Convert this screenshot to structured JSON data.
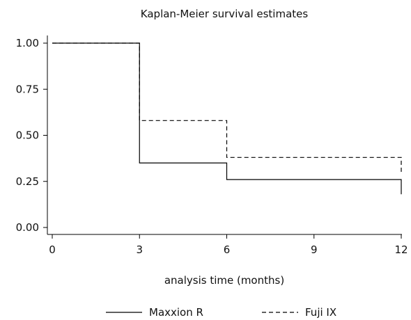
{
  "chart_data": {
    "type": "line",
    "subtype": "step",
    "title": "Kaplan-Meier survival estimates",
    "xlabel": "analysis time (months)",
    "ylabel": "",
    "xlim": [
      0,
      12
    ],
    "ylim": [
      0,
      1
    ],
    "x_ticks": [
      "0",
      "3",
      "6",
      "9",
      "12"
    ],
    "y_ticks": [
      "0.00",
      "0.25",
      "0.50",
      "0.75",
      "1.00"
    ],
    "grid": false,
    "legend_position": "bottom",
    "series": [
      {
        "name": "Maxxion R",
        "style": "solid",
        "color": "#000000",
        "steps": [
          {
            "x": 0,
            "y": 1.0
          },
          {
            "x": 3,
            "y": 0.35
          },
          {
            "x": 6,
            "y": 0.26
          },
          {
            "x": 12,
            "y": 0.18
          }
        ]
      },
      {
        "name": "Fuji IX",
        "style": "dashed",
        "color": "#000000",
        "steps": [
          {
            "x": 0,
            "y": 1.0
          },
          {
            "x": 3,
            "y": 0.58
          },
          {
            "x": 6,
            "y": 0.38
          },
          {
            "x": 12,
            "y": 0.3
          }
        ]
      }
    ]
  }
}
